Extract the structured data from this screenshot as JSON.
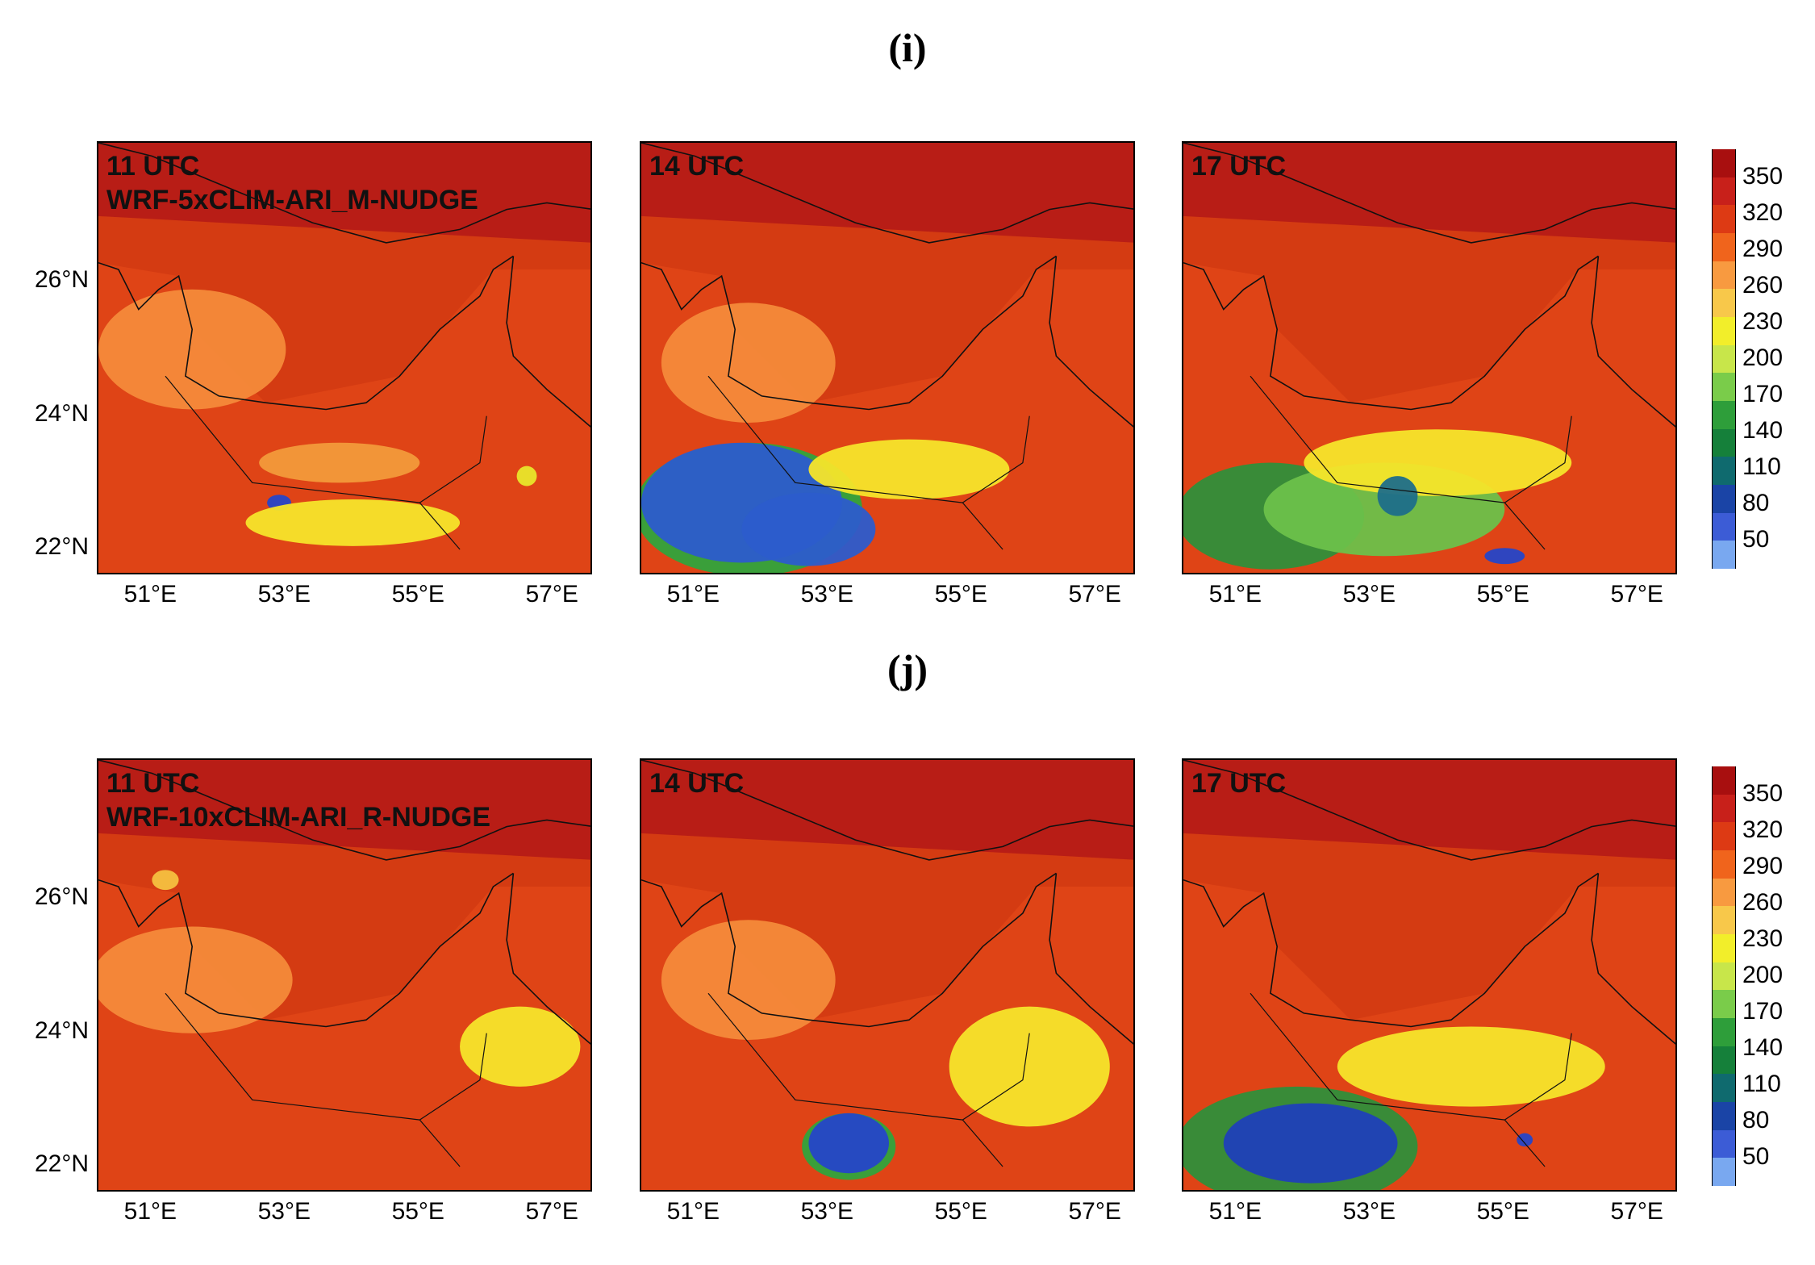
{
  "figure": {
    "rows": [
      {
        "label": "(i)",
        "run": "WRF-5xCLIM-ARI_M-NUDGE",
        "panels": [
          {
            "time": "11 UTC",
            "blobs": [
              {
                "x": 52.9,
                "y": 22.7,
                "rx": 0.18,
                "ry": 0.12,
                "c": "#2546c8"
              },
              {
                "x": 54.0,
                "y": 22.4,
                "rx": 1.6,
                "ry": 0.35,
                "c": "#f6e52a"
              },
              {
                "x": 53.8,
                "y": 23.3,
                "rx": 1.2,
                "ry": 0.3,
                "c": "#f29a3a"
              },
              {
                "x": 56.6,
                "y": 23.1,
                "rx": 0.15,
                "ry": 0.15,
                "c": "#e8e62a"
              },
              {
                "x": 51.6,
                "y": 25.0,
                "rx": 1.4,
                "ry": 0.9,
                "c": "#f48a3a"
              }
            ]
          },
          {
            "time": "14 UTC",
            "blobs": [
              {
                "x": 51.8,
                "y": 22.6,
                "rx": 1.7,
                "ry": 1.0,
                "c": "#30a43c"
              },
              {
                "x": 51.7,
                "y": 22.7,
                "rx": 1.5,
                "ry": 0.9,
                "c": "#2c5ccc"
              },
              {
                "x": 52.7,
                "y": 22.3,
                "rx": 1.0,
                "ry": 0.55,
                "c": "#2c5ccc"
              },
              {
                "x": 54.2,
                "y": 23.2,
                "rx": 1.5,
                "ry": 0.45,
                "c": "#f6e52a"
              },
              {
                "x": 51.8,
                "y": 24.8,
                "rx": 1.3,
                "ry": 0.9,
                "c": "#f48a3a"
              }
            ]
          },
          {
            "time": "17 UTC",
            "blobs": [
              {
                "x": 51.5,
                "y": 22.5,
                "rx": 1.4,
                "ry": 0.8,
                "c": "#2f8f3a"
              },
              {
                "x": 53.2,
                "y": 22.6,
                "rx": 1.8,
                "ry": 0.7,
                "c": "#6cc14a"
              },
              {
                "x": 54.0,
                "y": 23.3,
                "rx": 2.0,
                "ry": 0.5,
                "c": "#f6e52a"
              },
              {
                "x": 53.4,
                "y": 22.8,
                "rx": 0.3,
                "ry": 0.3,
                "c": "#1e6e8a"
              },
              {
                "x": 55.0,
                "y": 21.9,
                "rx": 0.3,
                "ry": 0.12,
                "c": "#2546c8"
              }
            ]
          }
        ]
      },
      {
        "label": "(j)",
        "run": "WRF-10xCLIM-ARI_R-NUDGE",
        "panels": [
          {
            "time": "11 UTC",
            "blobs": [
              {
                "x": 56.5,
                "y": 23.8,
                "rx": 0.9,
                "ry": 0.6,
                "c": "#f6e52a"
              },
              {
                "x": 51.6,
                "y": 24.8,
                "rx": 1.5,
                "ry": 0.8,
                "c": "#f48a3a"
              },
              {
                "x": 51.2,
                "y": 26.3,
                "rx": 0.2,
                "ry": 0.15,
                "c": "#f6c040"
              }
            ]
          },
          {
            "time": "14 UTC",
            "blobs": [
              {
                "x": 53.3,
                "y": 22.3,
                "rx": 0.7,
                "ry": 0.5,
                "c": "#30a43c"
              },
              {
                "x": 53.3,
                "y": 22.35,
                "rx": 0.6,
                "ry": 0.45,
                "c": "#2546c8"
              },
              {
                "x": 56.0,
                "y": 23.5,
                "rx": 1.2,
                "ry": 0.9,
                "c": "#f6e52a"
              },
              {
                "x": 51.8,
                "y": 24.8,
                "rx": 1.3,
                "ry": 0.9,
                "c": "#f48a3a"
              }
            ]
          },
          {
            "time": "17 UTC",
            "blobs": [
              {
                "x": 51.9,
                "y": 22.3,
                "rx": 1.8,
                "ry": 0.9,
                "c": "#2f8f3a"
              },
              {
                "x": 52.1,
                "y": 22.35,
                "rx": 1.3,
                "ry": 0.6,
                "c": "#1f40b8"
              },
              {
                "x": 54.5,
                "y": 23.5,
                "rx": 2.0,
                "ry": 0.6,
                "c": "#f6e52a"
              },
              {
                "x": 55.3,
                "y": 22.4,
                "rx": 0.12,
                "ry": 0.1,
                "c": "#2546c8"
              }
            ]
          }
        ]
      }
    ],
    "lat_ticks": [
      "26°N",
      "24°N",
      "22°N"
    ],
    "lat_values": [
      26,
      24,
      22
    ],
    "lon_ticks": [
      "51°E",
      "53°E",
      "55°E",
      "57°E"
    ],
    "lon_values": [
      51,
      53,
      55,
      57
    ],
    "extent": {
      "lon": [
        50.2,
        57.6
      ],
      "lat": [
        21.6,
        28.1
      ]
    },
    "colorbar": {
      "ticks": [
        "350",
        "320",
        "290",
        "260",
        "230",
        "200",
        "170",
        "140",
        "110",
        "80",
        "50"
      ],
      "colors": [
        "#a80f0f",
        "#c8201a",
        "#dd3a14",
        "#f0641c",
        "#f89a40",
        "#f8c84a",
        "#f2ee2a",
        "#c8e64a",
        "#7acc4a",
        "#2e9e3a",
        "#15803a",
        "#0f6a6e",
        "#1a44a6",
        "#3c5cd6",
        "#79a8f0"
      ]
    }
  }
}
